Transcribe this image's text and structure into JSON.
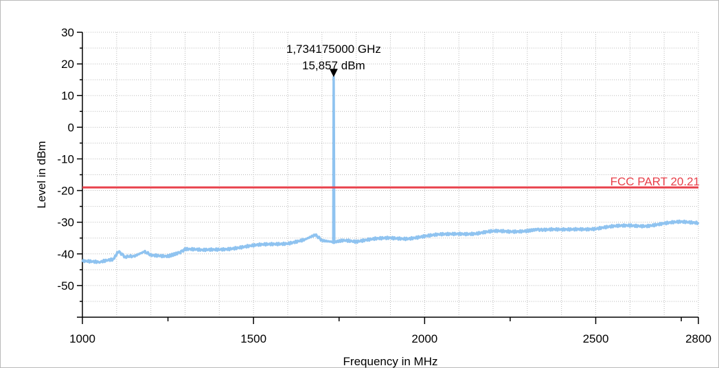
{
  "chart_data": {
    "type": "line",
    "xlabel": "Frequency in MHz",
    "ylabel": "Level in dBm",
    "xlim": [
      1000,
      2800
    ],
    "ylim": [
      -60,
      30
    ],
    "x_ticks": [
      1000,
      1500,
      2000,
      2500,
      2800
    ],
    "y_ticks": [
      30,
      20,
      10,
      0,
      -10,
      -20,
      -30,
      -40,
      -50
    ],
    "x_tick_labels": [
      "1000",
      "1500",
      "2000",
      "2500",
      "2800"
    ],
    "y_tick_labels": [
      "30",
      "20",
      "10",
      "0",
      "-10",
      "-20",
      "-30",
      "-40",
      "-50"
    ],
    "grid": true,
    "series": [
      {
        "color": "#8fc3f0",
        "x": [
          1000,
          1050,
          1090,
          1105,
          1125,
          1150,
          1180,
          1200,
          1250,
          1280,
          1300,
          1350,
          1400,
          1450,
          1500,
          1550,
          1600,
          1650,
          1680,
          1700,
          1733,
          1734.175,
          1736,
          1760,
          1800,
          1850,
          1900,
          1950,
          2000,
          2050,
          2100,
          2150,
          2200,
          2250,
          2300,
          2330,
          2350,
          2400,
          2450,
          2500,
          2550,
          2600,
          2650,
          2700,
          2750,
          2800
        ],
        "y": [
          -42.5,
          -42.5,
          -42,
          -39.5,
          -41,
          -41,
          -39.5,
          -40.5,
          -40.5,
          -39.5,
          -38.5,
          -39,
          -38.5,
          -38,
          -37.5,
          -37,
          -36.5,
          -35.5,
          -34,
          -36,
          -36.5,
          15.857,
          -36.5,
          -36,
          -36,
          -35.5,
          -35,
          -35,
          -34.5,
          -34,
          -33.5,
          -33.5,
          -33,
          -33,
          -32.5,
          -32,
          -32.5,
          -32.5,
          -32,
          -32,
          -31.5,
          -31,
          -31,
          -30.5,
          -30,
          -30
        ]
      }
    ],
    "limit_line": {
      "label": "FCC PART  20.21",
      "y": -19,
      "color": "#e8414b"
    },
    "marker": {
      "x": 1734.175,
      "y": 15.857,
      "freq_label": "1,734175000 GHz",
      "level_label": "15,857 dBm"
    }
  }
}
